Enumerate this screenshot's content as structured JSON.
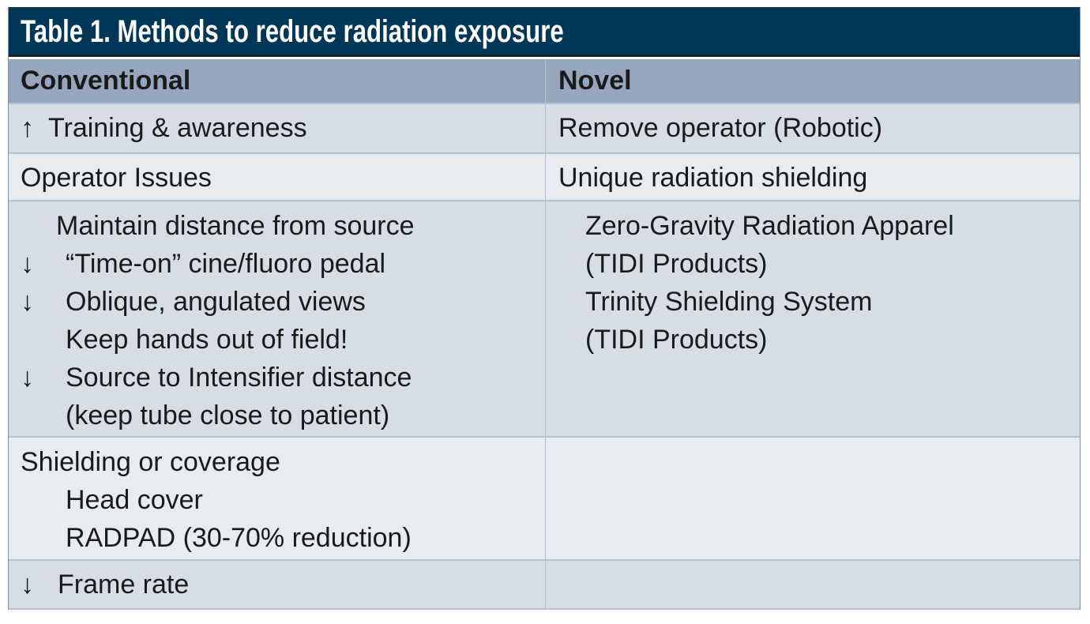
{
  "title": "Table 1.  Methods to reduce radiation exposure",
  "headers": [
    "Conventional",
    "Novel"
  ],
  "rows": [
    {
      "conventional": [
        {
          "arrow": "↑",
          "text": "Training & awareness",
          "indent": 0
        }
      ],
      "novel": [
        {
          "text": "Remove operator (Robotic)",
          "indent": 0
        }
      ]
    },
    {
      "conventional": [
        {
          "text": "Operator Issues",
          "indent": 0
        }
      ],
      "novel": [
        {
          "text": "Unique radiation shielding",
          "indent": 0
        }
      ]
    },
    {
      "conventional": [
        {
          "text": "Maintain distance from source",
          "indent": 1
        },
        {
          "arrow": "↓",
          "text": "“Time-on” cine/fluoro pedal",
          "indent": 2
        },
        {
          "arrow": "↓",
          "text": "Oblique, angulated views",
          "indent": 2
        },
        {
          "text": "Keep hands out of field!",
          "indent": 2
        },
        {
          "arrow": "↓",
          "text": "Source to Intensifier distance",
          "indent": 2
        },
        {
          "text": "(keep tube close to patient)",
          "indent": 2
        }
      ],
      "novel": [
        {
          "text": "Zero-Gravity Radiation Apparel",
          "indent": 1
        },
        {
          "text": "(TIDI Products)",
          "indent": 1
        },
        {
          "text": "Trinity Shielding System",
          "indent": 1
        },
        {
          "text": "(TIDI Products)",
          "indent": 1
        }
      ]
    },
    {
      "conventional": [
        {
          "text": "Shielding or coverage",
          "indent": 0
        },
        {
          "text": "Head cover",
          "indent": 2
        },
        {
          "text": "RADPAD (30-70% reduction)",
          "indent": 2
        }
      ],
      "novel": []
    },
    {
      "conventional": [
        {
          "arrow": "↓",
          "text": "Frame rate",
          "indent": 3
        }
      ],
      "novel": []
    }
  ],
  "colors": {
    "title_bg": "#003658",
    "header_bg": "#96a7bd",
    "row_dark": "#d6dde5",
    "row_light": "#e8ecf0"
  }
}
